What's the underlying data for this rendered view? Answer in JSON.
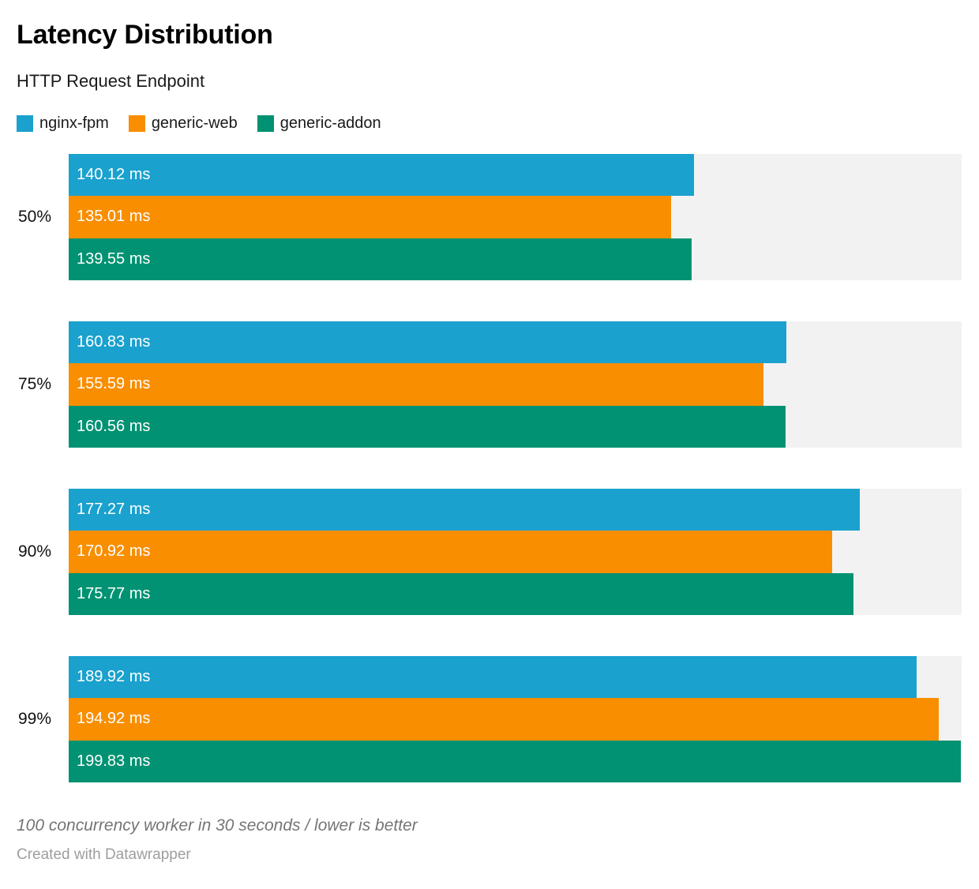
{
  "header": {
    "title": "Latency Distribution",
    "subtitle": "HTTP Request Endpoint"
  },
  "legend": [
    {
      "label": "nginx-fpm",
      "color": "#1aa1ce"
    },
    {
      "label": "generic-web",
      "color": "#f98e00"
    },
    {
      "label": "generic-addon",
      "color": "#009272"
    }
  ],
  "chart_data": {
    "type": "bar",
    "orientation": "horizontal",
    "title": "Latency Distribution",
    "subtitle": "HTTP Request Endpoint",
    "categories": [
      "50%",
      "75%",
      "90%",
      "99%"
    ],
    "series": [
      {
        "name": "nginx-fpm",
        "color": "#1aa1ce",
        "values": [
          140.12,
          160.83,
          177.27,
          189.92
        ]
      },
      {
        "name": "generic-web",
        "color": "#f98e00",
        "values": [
          135.01,
          155.59,
          170.92,
          194.92
        ]
      },
      {
        "name": "generic-addon",
        "color": "#009272",
        "values": [
          139.55,
          160.56,
          175.77,
          199.83
        ]
      }
    ],
    "unit": "ms",
    "xlim": [
      0,
      200
    ],
    "xlabel": "",
    "ylabel": "",
    "grid": false,
    "track_color": "#f2f2f2",
    "legend_position": "top",
    "value_labels_inside_bars": true
  },
  "footer": {
    "note": "100 concurrency worker in 30 seconds / lower is better",
    "credit": "Created with Datawrapper"
  }
}
